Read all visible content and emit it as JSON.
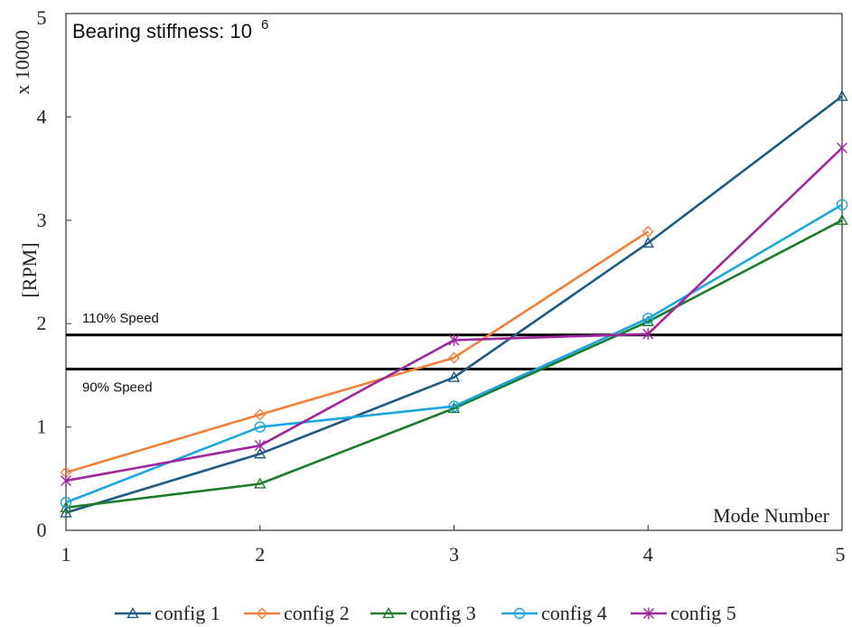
{
  "chart_data": {
    "type": "line",
    "title": "Bearing stiffness: 10",
    "title_superscript": "6",
    "xlabel": "Mode Number",
    "ylabel": "[RPM]",
    "y_multiplier": "x 10000",
    "x": [
      1,
      2,
      3,
      4,
      5
    ],
    "xlim": [
      1,
      5
    ],
    "ylim": [
      0,
      5
    ],
    "y_ticks": [
      0,
      1,
      2,
      3,
      4,
      5
    ],
    "y_tick_labels": [
      "0",
      "1",
      "2",
      "3",
      "4",
      "5"
    ],
    "x_ticks": [
      1,
      2,
      3,
      4,
      5
    ],
    "x_tick_labels": [
      "1",
      "2",
      "3",
      "4",
      "5"
    ],
    "grid": false,
    "legend_position": "bottom",
    "reference_lines": [
      {
        "label": "110% Speed",
        "y": 1.89,
        "color": "#000000"
      },
      {
        "label": "90% Speed",
        "y": 1.56,
        "color": "#000000"
      }
    ],
    "series": [
      {
        "name": "config 1",
        "color": "#1F5A82",
        "marker": "triangle",
        "x": [
          1,
          2,
          3,
          4,
          5
        ],
        "y": [
          0.17,
          0.74,
          1.48,
          2.78,
          4.2
        ]
      },
      {
        "name": "config 2",
        "color": "#F07F3C",
        "marker": "diamond",
        "x": [
          1,
          2,
          3,
          4
        ],
        "y": [
          0.56,
          1.12,
          1.67,
          2.89
        ]
      },
      {
        "name": "config 3",
        "color": "#1E7A2C",
        "marker": "triangle",
        "x": [
          1,
          2,
          3,
          4,
          5
        ],
        "y": [
          0.22,
          0.45,
          1.18,
          2.02,
          3.0
        ]
      },
      {
        "name": "config 4",
        "color": "#1AA6DE",
        "marker": "circle",
        "x": [
          1,
          2,
          3,
          4,
          5
        ],
        "y": [
          0.27,
          1.0,
          1.2,
          2.05,
          3.15
        ]
      },
      {
        "name": "config 5",
        "color": "#A0289E",
        "marker": "x",
        "x": [
          1,
          2,
          3,
          4,
          5
        ],
        "y": [
          0.48,
          0.82,
          1.84,
          1.9,
          3.7
        ]
      }
    ]
  }
}
